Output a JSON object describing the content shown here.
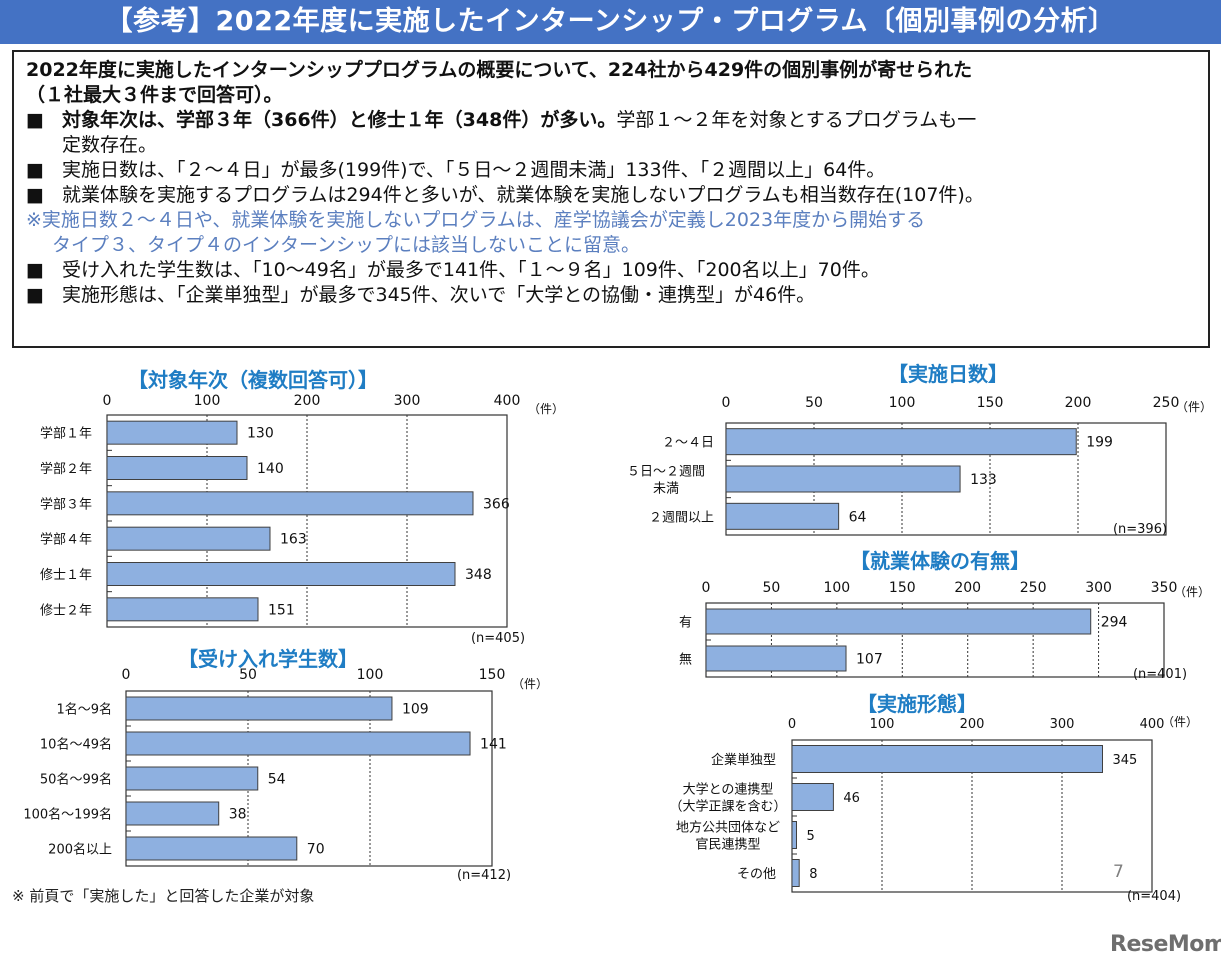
{
  "header": {
    "title": "【参考】2022年度に実施したインターンシップ・プログラム〔個別事例の分析〕"
  },
  "summary": {
    "intro_line1": "2022年度に実施したインターンシッププログラムの概要について、224社から429件の個別事例が寄せられた",
    "intro_line2": "（１社最大３件まで回答可）。",
    "bullet_symbol": "■",
    "bullet1_bold": "対象年次は、学部３年（366件）と修士１年（348件）が多い。",
    "bullet1_rest": "学部１～２年を対象とするプログラムも一",
    "bullet1_cont": "定数存在。",
    "bullet2": "実施日数は、「２～４日」が最多(199件)で、「５日～２週間未満」133件、「２週間以上」64件。",
    "bullet3": "就業体験を実施するプログラムは294件と多いが、就業体験を実施しないプログラムも相当数存在(107件)。",
    "note_line1": "※実施日数２～４日や、就業体験を実施しないプログラムは、産学協議会が定義し2023年度から開始する",
    "note_line2": "タイプ３、タイプ４のインターンシップには該当しないことに留意。",
    "bullet4": "受け入れた学生数は、「10～49名」が最多で141件、「１～９名」109件、「200名以上」70件。",
    "bullet5": "実施形態は、「企業単独型」が最多で345件、次いで「大学との協働・連携型」が46件。"
  },
  "footnote": "※ 前頁で「実施した」と回答した企業が対象",
  "page_number": "7",
  "logo": "ReseMom",
  "colors": {
    "header": "#4472c4",
    "bar_fill": "#8eb0e0",
    "bar_stroke": "#404040",
    "chart_title": "#1f7dc4",
    "note_text": "#5b7fbf"
  },
  "chart_data": [
    {
      "id": "target-year",
      "type": "bar",
      "orientation": "horizontal",
      "title": "【対象年次（複数回答可）】",
      "categories": [
        "学部１年",
        "学部２年",
        "学部３年",
        "学部４年",
        "修士１年",
        "修士２年"
      ],
      "values": [
        130,
        140,
        366,
        163,
        348,
        151
      ],
      "xlim": [
        0,
        400
      ],
      "ticks": [
        0,
        100,
        200,
        300,
        400
      ],
      "unit": "（件）",
      "n_label": "(n=405)",
      "grid": true
    },
    {
      "id": "students-accepted",
      "type": "bar",
      "orientation": "horizontal",
      "title": "【受け入れ学生数】",
      "categories": [
        "1名～9名",
        "10名～49名",
        "50名～99名",
        "100名～199名",
        "200名以上"
      ],
      "values": [
        109,
        141,
        54,
        38,
        70
      ],
      "xlim": [
        0,
        150
      ],
      "ticks": [
        0,
        50,
        100,
        150
      ],
      "unit": "（件）",
      "n_label": "(n=412)",
      "grid": true
    },
    {
      "id": "duration",
      "type": "bar",
      "orientation": "horizontal",
      "title": "【実施日数】",
      "categories": [
        "２～４日",
        "５日～２週間\n未満",
        "２週間以上"
      ],
      "values": [
        199,
        133,
        64
      ],
      "xlim": [
        0,
        250
      ],
      "ticks": [
        0,
        50,
        100,
        150,
        200,
        250
      ],
      "unit": "（件）",
      "n_label": "(n=396)",
      "grid": true
    },
    {
      "id": "work-experience",
      "type": "bar",
      "orientation": "horizontal",
      "title": "【就業体験の有無】",
      "categories": [
        "有",
        "無"
      ],
      "values": [
        294,
        107
      ],
      "xlim": [
        0,
        350
      ],
      "ticks": [
        0,
        50,
        100,
        150,
        200,
        250,
        300,
        350
      ],
      "unit": "（件）",
      "n_label": "(n=401)",
      "grid": true
    },
    {
      "id": "format",
      "type": "bar",
      "orientation": "horizontal",
      "title": "【実施形態】",
      "categories": [
        "企業単独型",
        "大学との連携型\n（大学正課を含む）",
        "地方公共団体など\n官民連携型",
        "その他"
      ],
      "values": [
        345,
        46,
        5,
        8
      ],
      "xlim": [
        0,
        400
      ],
      "ticks": [
        0,
        100,
        200,
        300,
        400
      ],
      "unit": "（件）",
      "n_label": "(n=404)",
      "grid": true
    }
  ]
}
